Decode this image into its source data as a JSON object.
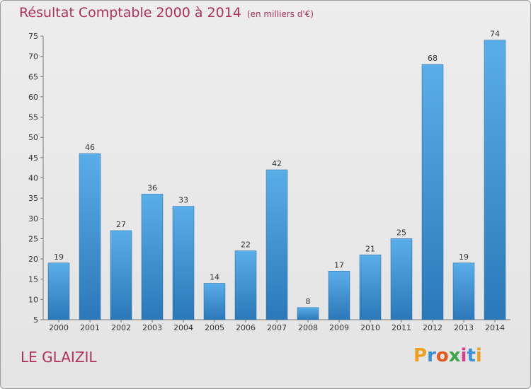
{
  "title": "Résultat Comptable 2000 à 2014",
  "subtitle": "(en milliers d'€)",
  "place": "LE GLAIZIL",
  "logo": {
    "letters": [
      "P",
      "r",
      "o",
      "x",
      "i",
      "t",
      "i"
    ],
    "colors": [
      "#f0a020",
      "#3a8fd8",
      "#e05a20",
      "#3aa84a",
      "#e03a8a",
      "#3a8fd8",
      "#f0a020"
    ]
  },
  "colors": {
    "bar_light": "#5aaee8",
    "bar_dark": "#2a78b8",
    "title": "#b0305a"
  },
  "chart_data": {
    "type": "bar",
    "title": "Résultat Comptable 2000 à 2014",
    "xlabel": "",
    "ylabel": "",
    "ylim": [
      5,
      75
    ],
    "yticks": [
      5,
      10,
      15,
      20,
      25,
      30,
      35,
      40,
      45,
      50,
      55,
      60,
      65,
      70,
      75
    ],
    "grid": false,
    "categories": [
      "2000",
      "2001",
      "2002",
      "2003",
      "2004",
      "2005",
      "2006",
      "2007",
      "2008",
      "2009",
      "2010",
      "2011",
      "2012",
      "2013",
      "2014"
    ],
    "values": [
      19,
      46,
      27,
      36,
      33,
      14,
      22,
      42,
      8,
      17,
      21,
      25,
      68,
      19,
      74
    ]
  }
}
